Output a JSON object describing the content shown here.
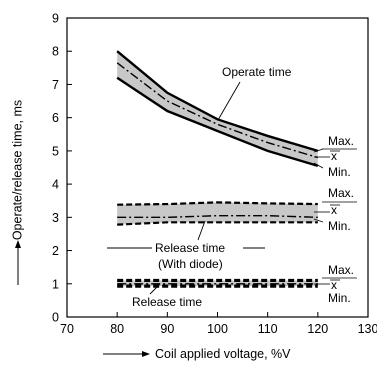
{
  "chart_data": {
    "type": "line",
    "xlabel": "Coil applied voltage, %V",
    "ylabel": "Operate/release time, ms",
    "xlim": [
      70,
      130
    ],
    "ylim": [
      0,
      9
    ],
    "x_ticks": [
      "70",
      "80",
      "90",
      "100",
      "110",
      "120",
      "130"
    ],
    "y_ticks": [
      "0",
      "1",
      "2",
      "3",
      "4",
      "5",
      "6",
      "7",
      "8",
      "9"
    ],
    "grid": "none",
    "series": [
      {
        "group": "operate",
        "stat": "max",
        "style": "solid",
        "x": [
          80,
          90,
          100,
          110,
          120
        ],
        "y": [
          8.0,
          6.75,
          5.95,
          5.45,
          5.0
        ]
      },
      {
        "group": "operate",
        "stat": "mean",
        "style": "dash-dot",
        "x": [
          80,
          90,
          100,
          110,
          120
        ],
        "y": [
          7.65,
          6.5,
          5.8,
          5.25,
          4.8
        ]
      },
      {
        "group": "operate",
        "stat": "min",
        "style": "solid",
        "x": [
          80,
          90,
          100,
          110,
          120
        ],
        "y": [
          7.2,
          6.2,
          5.6,
          5.0,
          4.55
        ]
      },
      {
        "group": "release_diode",
        "stat": "max",
        "style": "dashed",
        "x": [
          80,
          90,
          100,
          110,
          120
        ],
        "y": [
          3.38,
          3.4,
          3.45,
          3.42,
          3.4
        ]
      },
      {
        "group": "release_diode",
        "stat": "mean",
        "style": "dash-dot",
        "x": [
          80,
          90,
          100,
          110,
          120
        ],
        "y": [
          3.0,
          3.0,
          3.05,
          3.05,
          3.0
        ]
      },
      {
        "group": "release_diode",
        "stat": "min",
        "style": "dashed",
        "x": [
          80,
          90,
          100,
          110,
          120
        ],
        "y": [
          2.78,
          2.85,
          2.85,
          2.85,
          2.85
        ]
      },
      {
        "group": "release",
        "stat": "max",
        "style": "dashed",
        "x": [
          80,
          90,
          100,
          110,
          120
        ],
        "y": [
          1.1,
          1.1,
          1.1,
          1.1,
          1.1
        ]
      },
      {
        "group": "release",
        "stat": "mean",
        "style": "dash-dot",
        "x": [
          80,
          90,
          100,
          110,
          120
        ],
        "y": [
          1.0,
          1.0,
          1.0,
          1.0,
          1.0
        ]
      },
      {
        "group": "release",
        "stat": "min",
        "style": "dashed",
        "x": [
          80,
          90,
          100,
          110,
          120
        ],
        "y": [
          0.93,
          0.93,
          0.93,
          0.93,
          0.93
        ]
      }
    ],
    "annotations": {
      "operate_time": "Operate time",
      "release_time_diode_line1": "Release time",
      "release_time_diode_line2": "(With diode)",
      "release_time": "Release time",
      "max": "Max.",
      "mean": "x",
      "min": "Min."
    },
    "colors": {
      "line": "#000000",
      "band": "#c8c8c8"
    }
  }
}
